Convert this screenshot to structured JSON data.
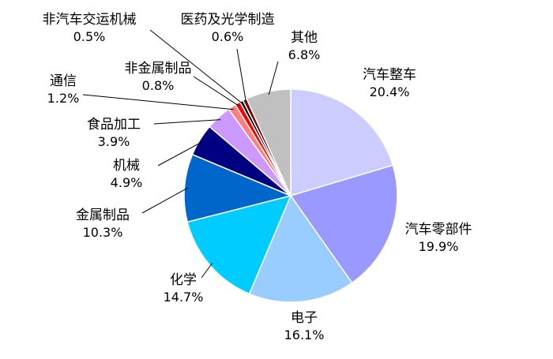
{
  "chart_data": {
    "type": "pie",
    "title": "",
    "slices": [
      {
        "name": "汽车整车",
        "value": 20.4,
        "label": "20.4%",
        "color": "#ccccff"
      },
      {
        "name": "汽车零部件",
        "value": 19.9,
        "label": "19.9%",
        "color": "#9999ff"
      },
      {
        "name": "电子",
        "value": 16.1,
        "label": "16.1%",
        "color": "#99ccff"
      },
      {
        "name": "化学",
        "value": 14.7,
        "label": "14.7%",
        "color": "#00ccff"
      },
      {
        "name": "金属制品",
        "value": 10.3,
        "label": "10.3%",
        "color": "#0066cc"
      },
      {
        "name": "机械",
        "value": 4.9,
        "label": "4.9%",
        "color": "#000080"
      },
      {
        "name": "食品加工",
        "value": 3.9,
        "label": "3.9%",
        "color": "#cc99ff"
      },
      {
        "name": "通信",
        "value": 1.2,
        "label": "1.2%",
        "color": "#ff8080"
      },
      {
        "name": "非金属制品",
        "value": 0.8,
        "label": "0.8%",
        "color": "#ff0000"
      },
      {
        "name": "非汽车交运机械",
        "value": 0.5,
        "label": "0.5%",
        "color": "#000000"
      },
      {
        "name": "医药及光学制造",
        "value": 0.6,
        "label": "0.6%",
        "color": "#800000"
      },
      {
        "name": "其他",
        "value": 6.8,
        "label": "6.8%",
        "color": "#c0c0c0"
      }
    ],
    "start_angle_deg": 0,
    "direction": "clockwise",
    "legend": "none",
    "label_style": "outside labels with leader lines"
  }
}
